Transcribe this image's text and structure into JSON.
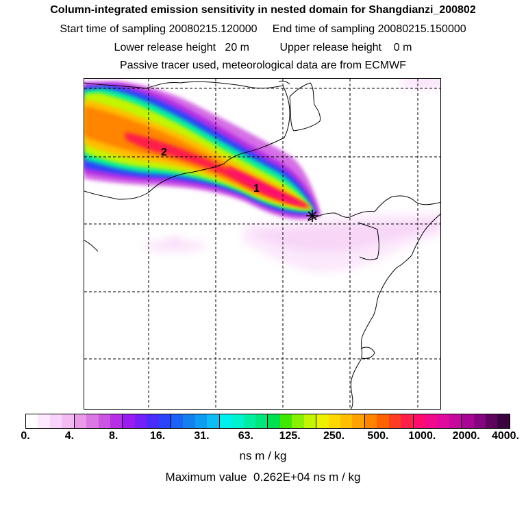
{
  "header": {
    "title": "Column-integrated emission sensitivity in nested domain for Shangdianzi_200802",
    "sampling_line": "Start time of sampling 20080215.120000     End time of sampling 20080215.150000",
    "release_line": "Lower release height   20 m          Upper release height    0 m",
    "tracer_line": "Passive tracer used, meteorological data are from ECMWF"
  },
  "map": {
    "labels": [
      {
        "text": "2"
      },
      {
        "text": "1"
      }
    ],
    "release_marker": "release-site-cross-marker"
  },
  "colorbar": {
    "colors": [
      "#ffffff",
      "#fde8fd",
      "#f9d2f9",
      "#f4baf4",
      "#e99ae9",
      "#dc78e3",
      "#cc55e3",
      "#b62ee5",
      "#9a1cf0",
      "#7421f7",
      "#4a2cfa",
      "#2a44fb",
      "#1b63f7",
      "#1480f0",
      "#0f9df4",
      "#0bbcf5",
      "#00f0f0",
      "#00f2cf",
      "#00eea2",
      "#00e87a",
      "#00e050",
      "#3fe800",
      "#88f000",
      "#c2f600",
      "#eef200",
      "#ffd800",
      "#ffbe00",
      "#ffa200",
      "#ff8400",
      "#ff6200",
      "#ff3d22",
      "#ff1f4a",
      "#ff0a6e",
      "#f20a8c",
      "#e00a9e",
      "#c8089f",
      "#a80594",
      "#86047f",
      "#5e045e",
      "#3a0440"
    ],
    "tick_labels": [
      "0.",
      "4.",
      "8.",
      "16.",
      "31.",
      "63.",
      "125.",
      "250.",
      "500.",
      "1000.",
      "2000.",
      "4000."
    ],
    "units": "ns m / kg"
  },
  "max_value_text": "Maximum value  0.262E+04 ns m / kg"
}
